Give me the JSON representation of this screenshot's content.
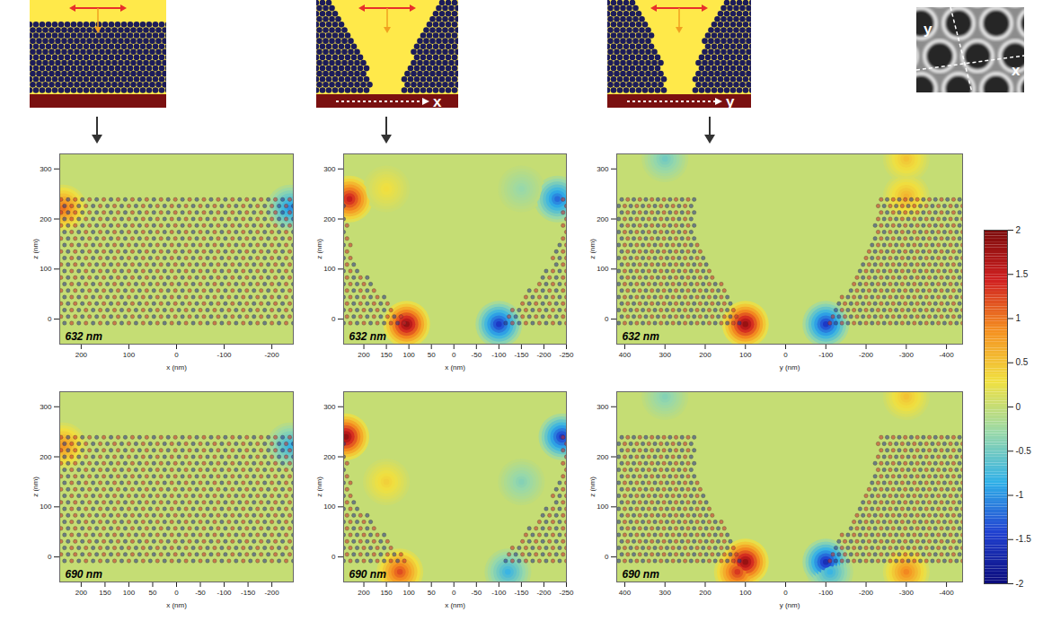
{
  "chart_data": [
    {
      "type": "heatmap",
      "label": "632 nm",
      "xlabel": "x (nm)",
      "ylabel": "z (nm)",
      "xlim": [
        245,
        -245
      ],
      "xticks": [
        200,
        100,
        0,
        -100,
        -200
      ],
      "ylim": [
        -50,
        330
      ],
      "yticks": [
        0,
        100,
        200,
        300
      ],
      "regions": [
        [
          [
            245,
            -10
          ],
          [
            -245,
            -10
          ],
          [
            -245,
            240
          ],
          [
            245,
            240
          ]
        ]
      ],
      "hotspots": [
        {
          "x": 238,
          "z": 222,
          "value": 1
        },
        {
          "x": -238,
          "z": 222,
          "value": -1
        }
      ]
    },
    {
      "type": "heatmap",
      "label": "632 nm",
      "xlabel": "x (nm)",
      "ylabel": "z (nm)",
      "xlim": [
        245,
        -250
      ],
      "xticks": [
        200,
        150,
        100,
        50,
        0,
        -50,
        -100,
        -150,
        -200,
        -250
      ],
      "ylim": [
        -50,
        330
      ],
      "yticks": [
        0,
        100,
        200,
        300
      ],
      "regions": [
        [
          [
            250,
            -10
          ],
          [
            100,
            -10
          ],
          [
            130,
            20
          ],
          [
            170,
            60
          ],
          [
            215,
            110
          ],
          [
            235,
            170
          ],
          [
            240,
            240
          ],
          [
            250,
            240
          ]
        ],
        [
          [
            -250,
            -10
          ],
          [
            -100,
            -10
          ],
          [
            -130,
            20
          ],
          [
            -170,
            60
          ],
          [
            -215,
            110
          ],
          [
            -235,
            170
          ],
          [
            -240,
            240
          ],
          [
            -250,
            240
          ]
        ]
      ],
      "hotspots": [
        {
          "x": 232,
          "z": 240,
          "value": 1.5
        },
        {
          "x": 105,
          "z": -10,
          "value": 1.8
        },
        {
          "x": -100,
          "z": -10,
          "value": -1.5
        },
        {
          "x": -230,
          "z": 240,
          "value": -1.2
        },
        {
          "x": 150,
          "z": 260,
          "value": 0.3
        },
        {
          "x": -150,
          "z": 260,
          "value": -0.3
        }
      ]
    },
    {
      "type": "heatmap",
      "label": "632 nm",
      "xlabel": "y (nm)",
      "ylabel": "z (nm)",
      "xlim": [
        420,
        -440
      ],
      "xticks": [
        400,
        300,
        200,
        100,
        0,
        -100,
        -200,
        -300,
        -400
      ],
      "ylim": [
        -50,
        330
      ],
      "yticks": [
        0,
        100,
        200,
        300
      ],
      "regions": [
        [
          [
            420,
            -10
          ],
          [
            100,
            -10
          ],
          [
            150,
            60
          ],
          [
            190,
            110
          ],
          [
            220,
            160
          ],
          [
            225,
            240
          ],
          [
            420,
            240
          ]
        ],
        [
          [
            -100,
            -10
          ],
          [
            -440,
            -10
          ],
          [
            -440,
            240
          ],
          [
            -225,
            240
          ],
          [
            -220,
            160
          ],
          [
            -190,
            110
          ],
          [
            -150,
            60
          ]
        ]
      ],
      "hotspots": [
        {
          "x": 300,
          "z": 320,
          "value": -0.5
        },
        {
          "x": -300,
          "z": 320,
          "value": 0.5
        },
        {
          "x": 100,
          "z": -10,
          "value": 1.8
        },
        {
          "x": -100,
          "z": -10,
          "value": -1.5
        },
        {
          "x": -300,
          "z": 245,
          "value": 0.6
        }
      ]
    },
    {
      "type": "heatmap",
      "label": "690 nm",
      "xlabel": "x (nm)",
      "ylabel": "z (nm)",
      "xlim": [
        245,
        -245
      ],
      "xticks": [
        200,
        150,
        100,
        50,
        0,
        -50,
        -100,
        -150,
        -200
      ],
      "ylim": [
        -50,
        330
      ],
      "yticks": [
        0,
        100,
        200,
        300
      ],
      "regions": [
        [
          [
            245,
            -10
          ],
          [
            -245,
            -10
          ],
          [
            -245,
            240
          ],
          [
            245,
            240
          ]
        ]
      ],
      "hotspots": [
        {
          "x": 238,
          "z": 222,
          "value": 0.8
        },
        {
          "x": -238,
          "z": 222,
          "value": -0.8
        }
      ]
    },
    {
      "type": "heatmap",
      "label": "690 nm",
      "xlabel": "x (nm)",
      "ylabel": "z (nm)",
      "xlim": [
        245,
        -250
      ],
      "xticks": [
        200,
        150,
        100,
        50,
        0,
        -50,
        -100,
        -150,
        -200,
        -250
      ],
      "ylim": [
        -50,
        330
      ],
      "yticks": [
        0,
        100,
        200,
        300
      ],
      "regions": [
        [
          [
            250,
            -10
          ],
          [
            100,
            -10
          ],
          [
            130,
            20
          ],
          [
            170,
            60
          ],
          [
            215,
            110
          ],
          [
            235,
            170
          ],
          [
            240,
            240
          ],
          [
            250,
            240
          ]
        ],
        [
          [
            -250,
            -10
          ],
          [
            -100,
            -10
          ],
          [
            -130,
            20
          ],
          [
            -170,
            60
          ],
          [
            -215,
            110
          ],
          [
            -235,
            170
          ],
          [
            -240,
            240
          ],
          [
            -250,
            240
          ]
        ]
      ],
      "hotspots": [
        {
          "x": 120,
          "z": -30,
          "value": 1.2
        },
        {
          "x": -120,
          "z": -30,
          "value": -0.8
        },
        {
          "x": 240,
          "z": 240,
          "value": 1.8
        },
        {
          "x": -240,
          "z": 240,
          "value": -1.5
        },
        {
          "x": 150,
          "z": 150,
          "value": 0.4
        },
        {
          "x": -150,
          "z": 150,
          "value": -0.4
        }
      ]
    },
    {
      "type": "heatmap",
      "label": "690 nm",
      "xlabel": "y (nm)",
      "ylabel": "z (nm)",
      "xlim": [
        420,
        -440
      ],
      "xticks": [
        400,
        300,
        200,
        100,
        0,
        -100,
        -200,
        -300,
        -400
      ],
      "ylim": [
        -50,
        330
      ],
      "yticks": [
        0,
        100,
        200,
        300
      ],
      "regions": [
        [
          [
            420,
            -10
          ],
          [
            100,
            -10
          ],
          [
            150,
            60
          ],
          [
            190,
            110
          ],
          [
            220,
            160
          ],
          [
            225,
            240
          ],
          [
            420,
            240
          ]
        ],
        [
          [
            -100,
            -10
          ],
          [
            -440,
            -10
          ],
          [
            -440,
            240
          ],
          [
            -225,
            240
          ],
          [
            -220,
            160
          ],
          [
            -190,
            110
          ],
          [
            -150,
            60
          ]
        ]
      ],
      "hotspots": [
        {
          "x": 120,
          "z": -30,
          "value": 1.3
        },
        {
          "x": -110,
          "z": -30,
          "value": -0.8
        },
        {
          "x": -300,
          "z": -30,
          "value": 0.9
        },
        {
          "x": 300,
          "z": 320,
          "value": -0.4
        },
        {
          "x": -300,
          "z": 320,
          "value": 0.5
        },
        {
          "x": 100,
          "z": -10,
          "value": 1.8
        },
        {
          "x": -100,
          "z": -10,
          "value": -1.6
        }
      ]
    }
  ],
  "colorbar": {
    "range": [
      -2,
      2
    ],
    "ticks": [
      2,
      1.5,
      1,
      0.5,
      0,
      -0.5,
      -1,
      -1.5,
      -2
    ]
  },
  "schematics": {
    "trench_axis_labels": [
      "x",
      "y"
    ]
  },
  "inset": {
    "axis_labels": [
      "x",
      "y"
    ]
  }
}
